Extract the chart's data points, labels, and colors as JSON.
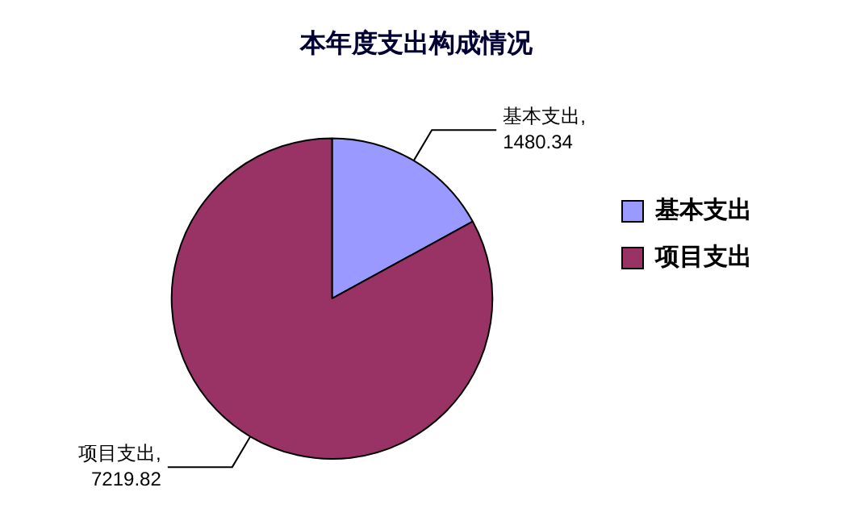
{
  "chart_data": {
    "type": "pie",
    "title": "本年度支出构成情况",
    "categories": [
      "基本支出",
      "项目支出"
    ],
    "values": [
      1480.34,
      7219.82
    ],
    "value_labels": [
      "基本支出,\n1480.34",
      "项目支出,\n7219.82"
    ],
    "colors": [
      "#9999ff",
      "#993366"
    ],
    "legend": "right"
  }
}
